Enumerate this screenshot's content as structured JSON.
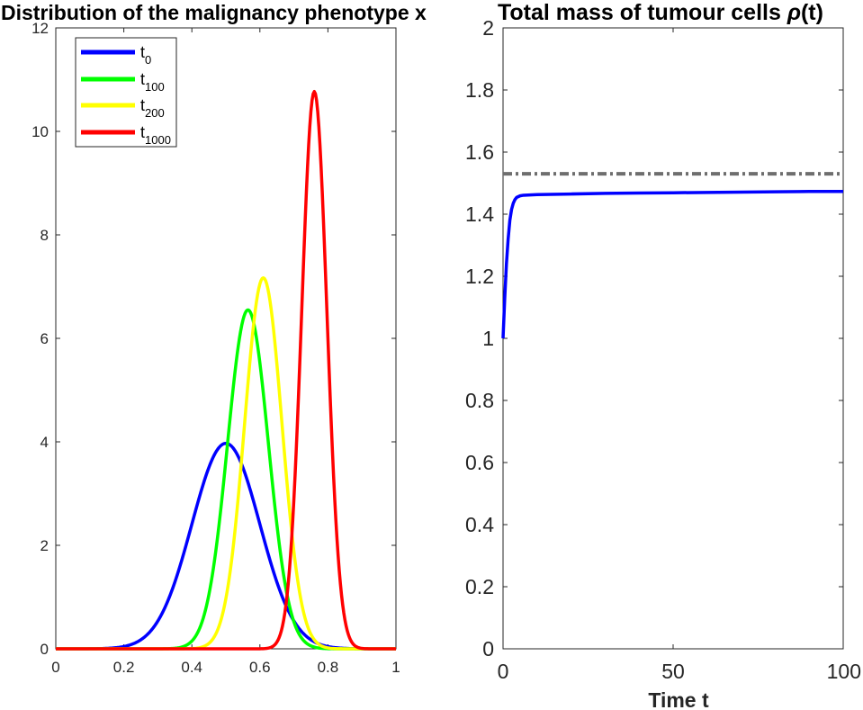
{
  "chart_data": [
    {
      "type": "line",
      "title": "Distribution of the malignancy phenotype x",
      "xlabel": "",
      "ylabel": "",
      "xlim": [
        0,
        1
      ],
      "ylim": [
        0,
        12
      ],
      "xticks": [
        "0",
        "0.2",
        "0.4",
        "0.6",
        "0.8",
        "1"
      ],
      "yticks": [
        "0",
        "2",
        "4",
        "6",
        "8",
        "10",
        "12"
      ],
      "grid": false,
      "legend_position": "top-left",
      "series": [
        {
          "name": "t0",
          "legend_base": "t",
          "legend_sub": "0",
          "color": "#0000ff",
          "peak_x": 0.5,
          "peak_y": 3.97,
          "std": 0.1
        },
        {
          "name": "t100",
          "legend_base": "t",
          "legend_sub": "100",
          "color": "#00ff00",
          "peak_x": 0.565,
          "peak_y": 6.55,
          "std": 0.06
        },
        {
          "name": "t200",
          "legend_base": "t",
          "legend_sub": "200",
          "color": "#ffff00",
          "peak_x": 0.61,
          "peak_y": 7.17,
          "std": 0.055
        },
        {
          "name": "t1000",
          "legend_base": "t",
          "legend_sub": "1000",
          "color": "#ff0000",
          "peak_x": 0.76,
          "peak_y": 10.77,
          "std": 0.037
        }
      ]
    },
    {
      "type": "line",
      "title_prefix": "Total mass of tumour cells ",
      "title_symbol": "ρ",
      "title_suffix": "(t)",
      "xlabel": "Time t",
      "ylabel": "",
      "xlim": [
        0,
        100
      ],
      "ylim": [
        0,
        2
      ],
      "xticks": [
        "0",
        "50",
        "100"
      ],
      "yticks": [
        "0",
        "0.2",
        "0.4",
        "0.6",
        "0.8",
        "1",
        "1.2",
        "1.4",
        "1.6",
        "1.8",
        "2"
      ],
      "grid": false,
      "series": [
        {
          "name": "rho(t)",
          "color": "#0000ff",
          "style": "solid",
          "x": [
            0,
            0.5,
            1,
            1.5,
            2,
            2.5,
            3,
            3.5,
            4,
            5,
            6,
            8,
            10,
            20,
            30,
            40,
            50,
            60,
            70,
            80,
            90,
            100
          ],
          "y": [
            1.0,
            1.13,
            1.24,
            1.32,
            1.38,
            1.415,
            1.435,
            1.447,
            1.454,
            1.459,
            1.461,
            1.462,
            1.463,
            1.465,
            1.467,
            1.468,
            1.469,
            1.47,
            1.471,
            1.472,
            1.473,
            1.473
          ]
        },
        {
          "name": "reference level",
          "color": "#6e6e6e",
          "style": "dash-dot",
          "x": [
            0,
            100
          ],
          "y": [
            1.53,
            1.53
          ]
        }
      ]
    }
  ]
}
